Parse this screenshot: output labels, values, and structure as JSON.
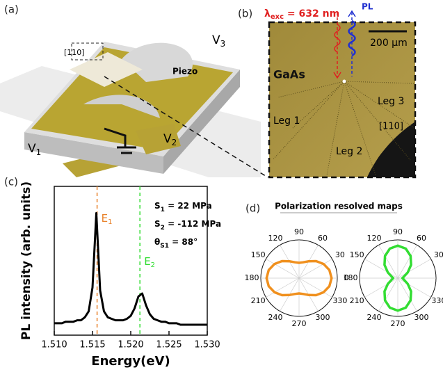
{
  "panels": {
    "a": {
      "label": "(a)",
      "direction": "[110]",
      "piezo": "Piezo",
      "v1": {
        "main": "V",
        "sub": "1"
      },
      "v2": {
        "main": "V",
        "sub": "2"
      },
      "v3": {
        "main": "V",
        "sub": "3"
      }
    },
    "b": {
      "label": "(b)",
      "excitation": {
        "main": "λ",
        "sub": "exc",
        "rest": " = 632 nm"
      },
      "pl": "PL",
      "scale_bar": "200 μm",
      "material": "GaAs",
      "leg1": "Leg 1",
      "leg2": "Leg 2",
      "leg3": "Leg 3",
      "direction": "[110]"
    },
    "c": {
      "label": "(c)"
    },
    "d": {
      "label": "(d)",
      "title": "Polarization resolved maps"
    }
  },
  "chart_data": [
    {
      "type": "line",
      "x_label": "Energy(eV)",
      "y_label": "PL intensity (arb. units)",
      "xlim": [
        1.51,
        1.53
      ],
      "ylim": [
        0,
        1
      ],
      "xticks": [
        {
          "value": 1.51,
          "label": "1.510"
        },
        {
          "value": 1.515,
          "label": "1.515"
        },
        {
          "value": 1.52,
          "label": "1.520"
        },
        {
          "value": 1.525,
          "label": "1.525"
        },
        {
          "value": 1.53,
          "label": "1.530"
        }
      ],
      "color": "#000000",
      "x": [
        1.51,
        1.5105,
        1.511,
        1.5115,
        1.512,
        1.5125,
        1.513,
        1.5135,
        1.514,
        1.5145,
        1.515,
        1.5155,
        1.516,
        1.5165,
        1.517,
        1.5175,
        1.518,
        1.5185,
        1.519,
        1.5195,
        1.52,
        1.5205,
        1.521,
        1.5215,
        1.522,
        1.5225,
        1.523,
        1.5235,
        1.524,
        1.5245,
        1.525,
        1.5255,
        1.526,
        1.5265,
        1.527,
        1.5275,
        1.528,
        1.5285,
        1.529,
        1.5295,
        1.53
      ],
      "values": [
        0.08,
        0.08,
        0.08,
        0.09,
        0.09,
        0.09,
        0.1,
        0.1,
        0.12,
        0.16,
        0.32,
        0.82,
        0.3,
        0.16,
        0.12,
        0.11,
        0.1,
        0.1,
        0.1,
        0.11,
        0.13,
        0.18,
        0.26,
        0.28,
        0.2,
        0.14,
        0.11,
        0.1,
        0.09,
        0.09,
        0.08,
        0.08,
        0.08,
        0.07,
        0.07,
        0.07,
        0.07,
        0.07,
        0.07,
        0.07,
        0.07
      ],
      "markers": [
        {
          "label": {
            "main": "E",
            "sub": "1"
          },
          "x": 1.5156,
          "color": "#e8812a"
        },
        {
          "label": {
            "main": "E",
            "sub": "2"
          },
          "x": 1.5212,
          "color": "#33dd33"
        }
      ],
      "annotations": [
        {
          "main": "S",
          "sub": "1",
          "rest": " = 22 MPa"
        },
        {
          "main": "S",
          "sub": "2",
          "rest": " = -112 MPa"
        },
        {
          "main": "θ",
          "sub": "S1",
          "rest": " =  88°"
        }
      ]
    },
    {
      "type": "polar",
      "rlim": [
        0,
        1
      ],
      "color": "#f0901e",
      "thetaticks": [
        0,
        30,
        60,
        90,
        120,
        150,
        180,
        210,
        240,
        270,
        300,
        330
      ],
      "theta": [
        0,
        15,
        30,
        45,
        60,
        75,
        90,
        105,
        120,
        135,
        150,
        165,
        180,
        195,
        210,
        225,
        240,
        255,
        270,
        285,
        300,
        315,
        330,
        345
      ],
      "values": [
        0.85,
        0.82,
        0.74,
        0.63,
        0.51,
        0.43,
        0.4,
        0.43,
        0.51,
        0.63,
        0.74,
        0.82,
        0.85,
        0.82,
        0.74,
        0.63,
        0.51,
        0.43,
        0.4,
        0.43,
        0.51,
        0.63,
        0.74,
        0.82
      ]
    },
    {
      "type": "polar",
      "rlim": [
        0,
        1
      ],
      "color": "#33dd33",
      "thetaticks": [
        0,
        30,
        60,
        90,
        120,
        150,
        180,
        210,
        240,
        270,
        300,
        330
      ],
      "theta": [
        0,
        15,
        30,
        45,
        60,
        75,
        90,
        105,
        120,
        135,
        150,
        165,
        180,
        195,
        210,
        225,
        240,
        255,
        270,
        285,
        300,
        315,
        330,
        345
      ],
      "values": [
        0.12,
        0.17,
        0.3,
        0.49,
        0.67,
        0.8,
        0.85,
        0.8,
        0.67,
        0.49,
        0.3,
        0.17,
        0.12,
        0.17,
        0.3,
        0.49,
        0.67,
        0.8,
        0.85,
        0.8,
        0.67,
        0.49,
        0.3,
        0.17
      ]
    }
  ]
}
